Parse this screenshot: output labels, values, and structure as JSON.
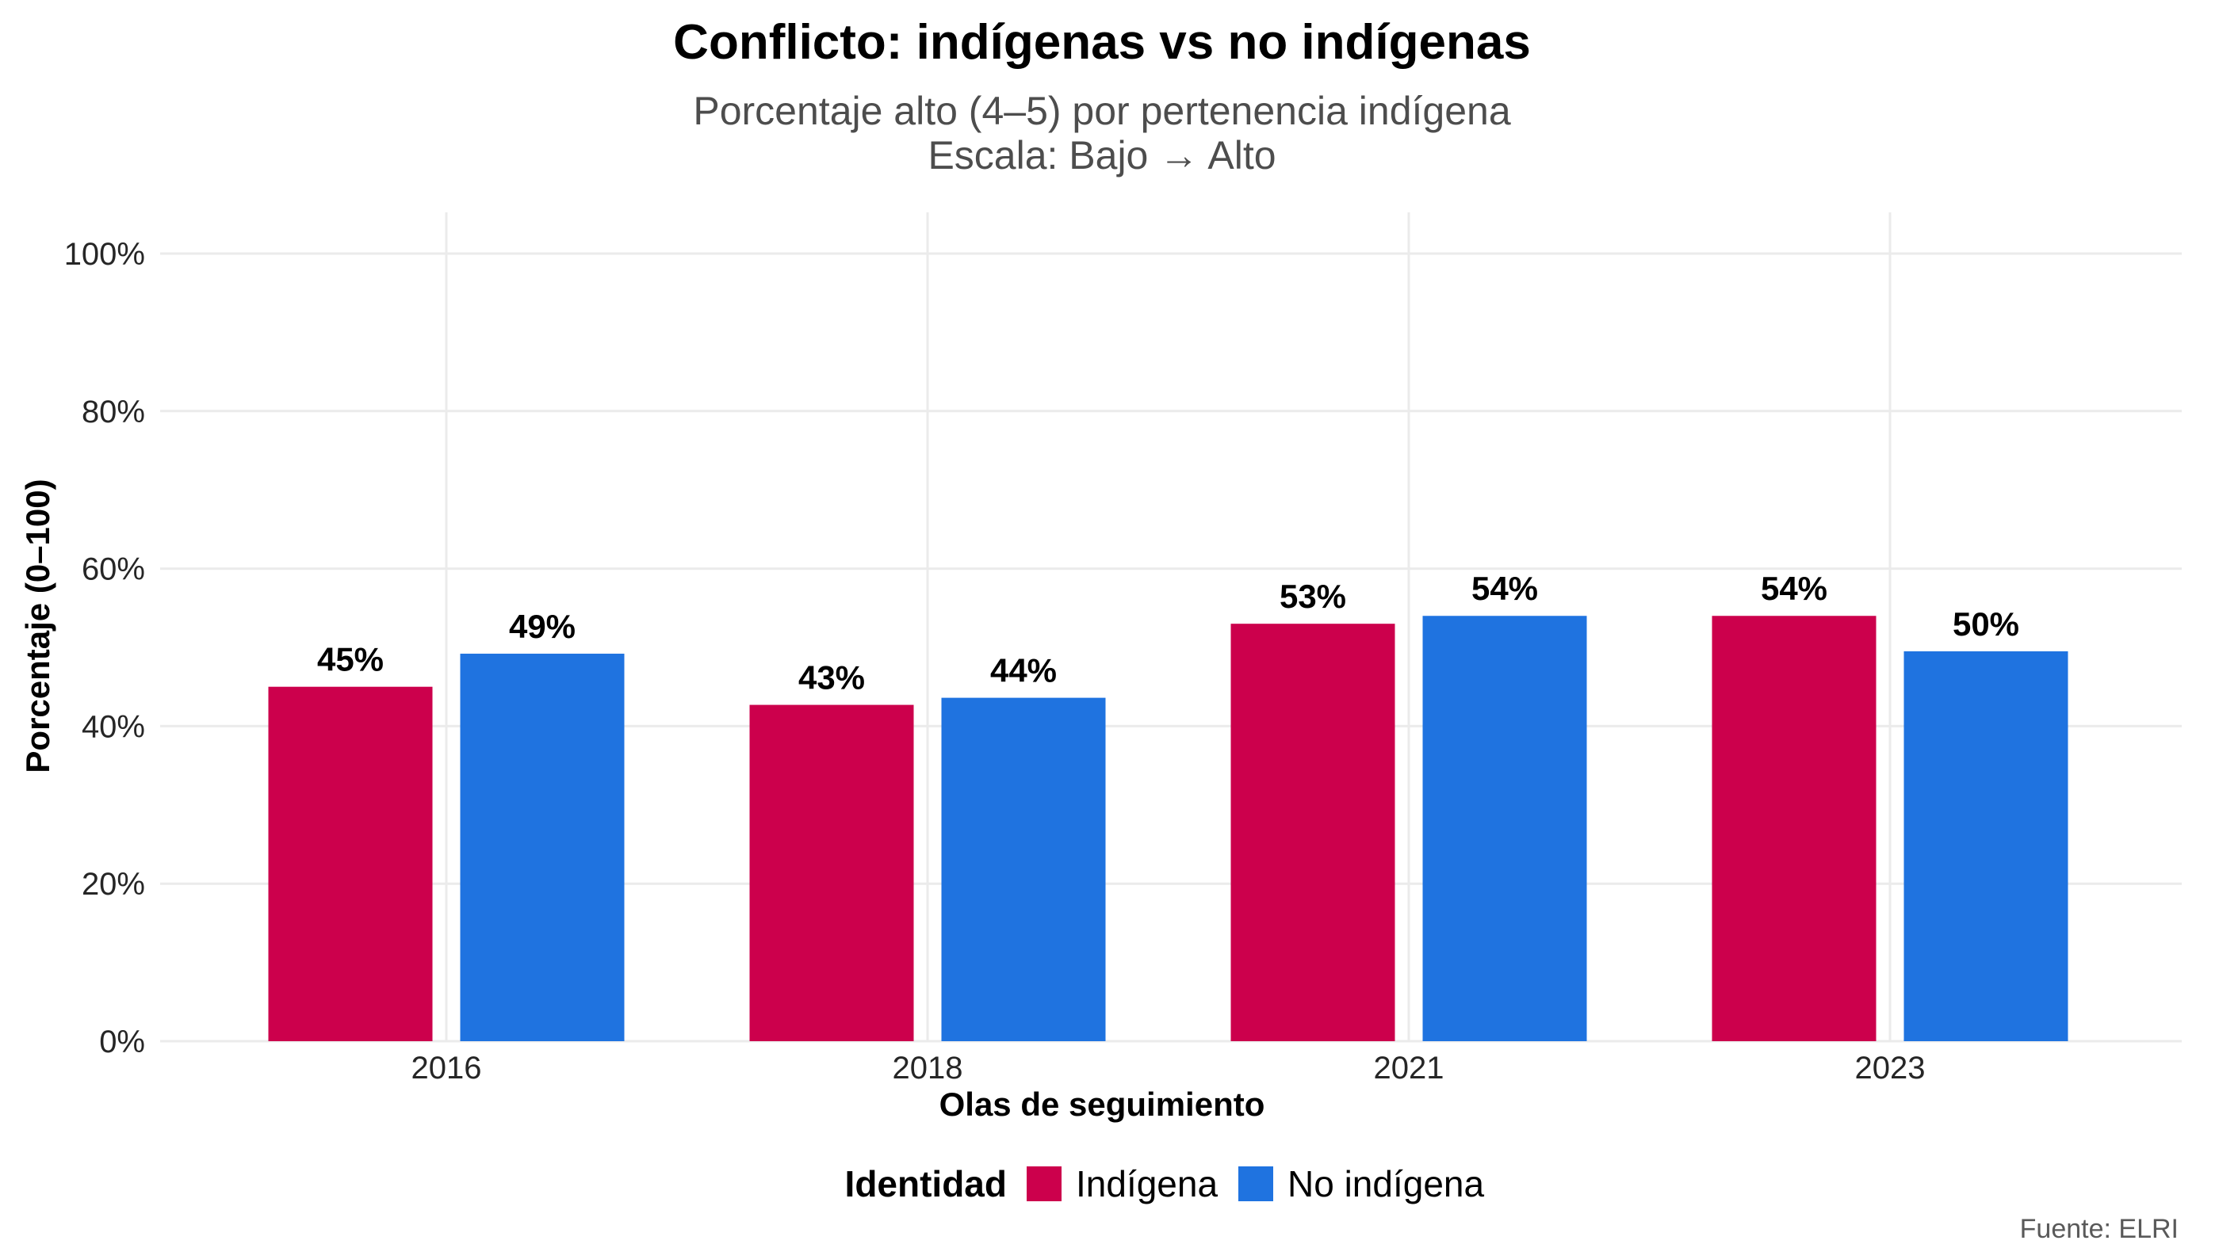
{
  "chart_data": {
    "type": "bar",
    "title": "Conflicto: indígenas vs no indígenas",
    "subtitle_lines": [
      "Porcentaje alto (4–5) por pertenencia indígena",
      "Escala: Bajo → Alto"
    ],
    "xlabel": "Olas de seguimiento",
    "ylabel": "Porcentaje (0–100)",
    "categories": [
      "2016",
      "2018",
      "2021",
      "2023"
    ],
    "ylim": [
      0,
      100
    ],
    "yticks": [
      0,
      20,
      40,
      60,
      80,
      100
    ],
    "ytick_labels": [
      "0%",
      "20%",
      "40%",
      "60%",
      "80%",
      "100%"
    ],
    "grid": true,
    "legend": {
      "title": "Identidad",
      "position": "bottom"
    },
    "series": [
      {
        "name": "Indígena",
        "color": "#cc004c",
        "values": [
          45,
          42.7,
          53,
          54
        ],
        "labels": [
          "45%",
          "43%",
          "53%",
          "54%"
        ]
      },
      {
        "name": "No indígena",
        "color": "#1f73e0",
        "values": [
          49.2,
          43.6,
          54,
          49.5
        ],
        "labels": [
          "49%",
          "44%",
          "54%",
          "50%"
        ]
      }
    ],
    "caption": "Fuente: ELRI"
  }
}
